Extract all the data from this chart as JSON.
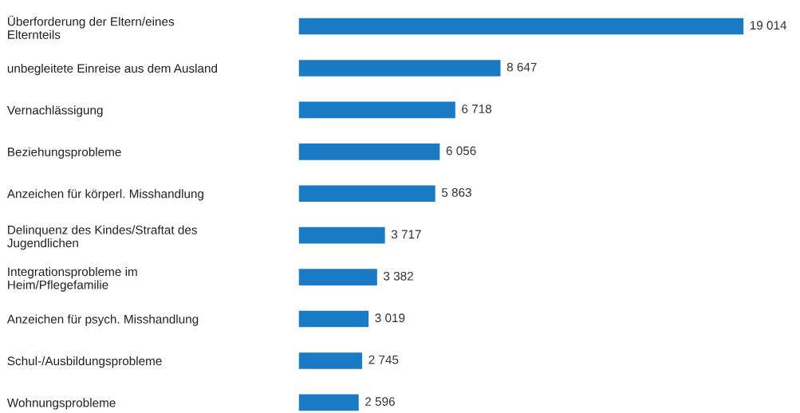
{
  "chart_data": {
    "type": "bar",
    "orientation": "horizontal",
    "categories": [
      "Überforderung der Eltern/eines\nElternteils",
      "unbegleitete Einreise aus dem Ausland",
      "Vernachlässigung",
      "Beziehungsprobleme",
      "Anzeichen für körperl. Misshandlung",
      "Delinquenz des Kindes/Straftat des\nJugendlichen",
      "Integrationsprobleme im\nHeim/Pflegefamilie",
      "Anzeichen für psych. Misshandlung",
      "Schul-/Ausbildungsprobleme",
      "Wohnungsprobleme"
    ],
    "values": [
      19014,
      8647,
      6718,
      6056,
      5863,
      3717,
      3382,
      3019,
      2745,
      2596
    ],
    "value_labels": [
      "19 014",
      "8 647",
      "6 718",
      "6 056",
      "5 863",
      "3 717",
      "3 382",
      "3 019",
      "2 745",
      "2 596"
    ],
    "color": "#1a7ac4",
    "xlim": [
      0,
      19014
    ],
    "tick_labels": "y",
    "grid": false,
    "legend": false
  }
}
